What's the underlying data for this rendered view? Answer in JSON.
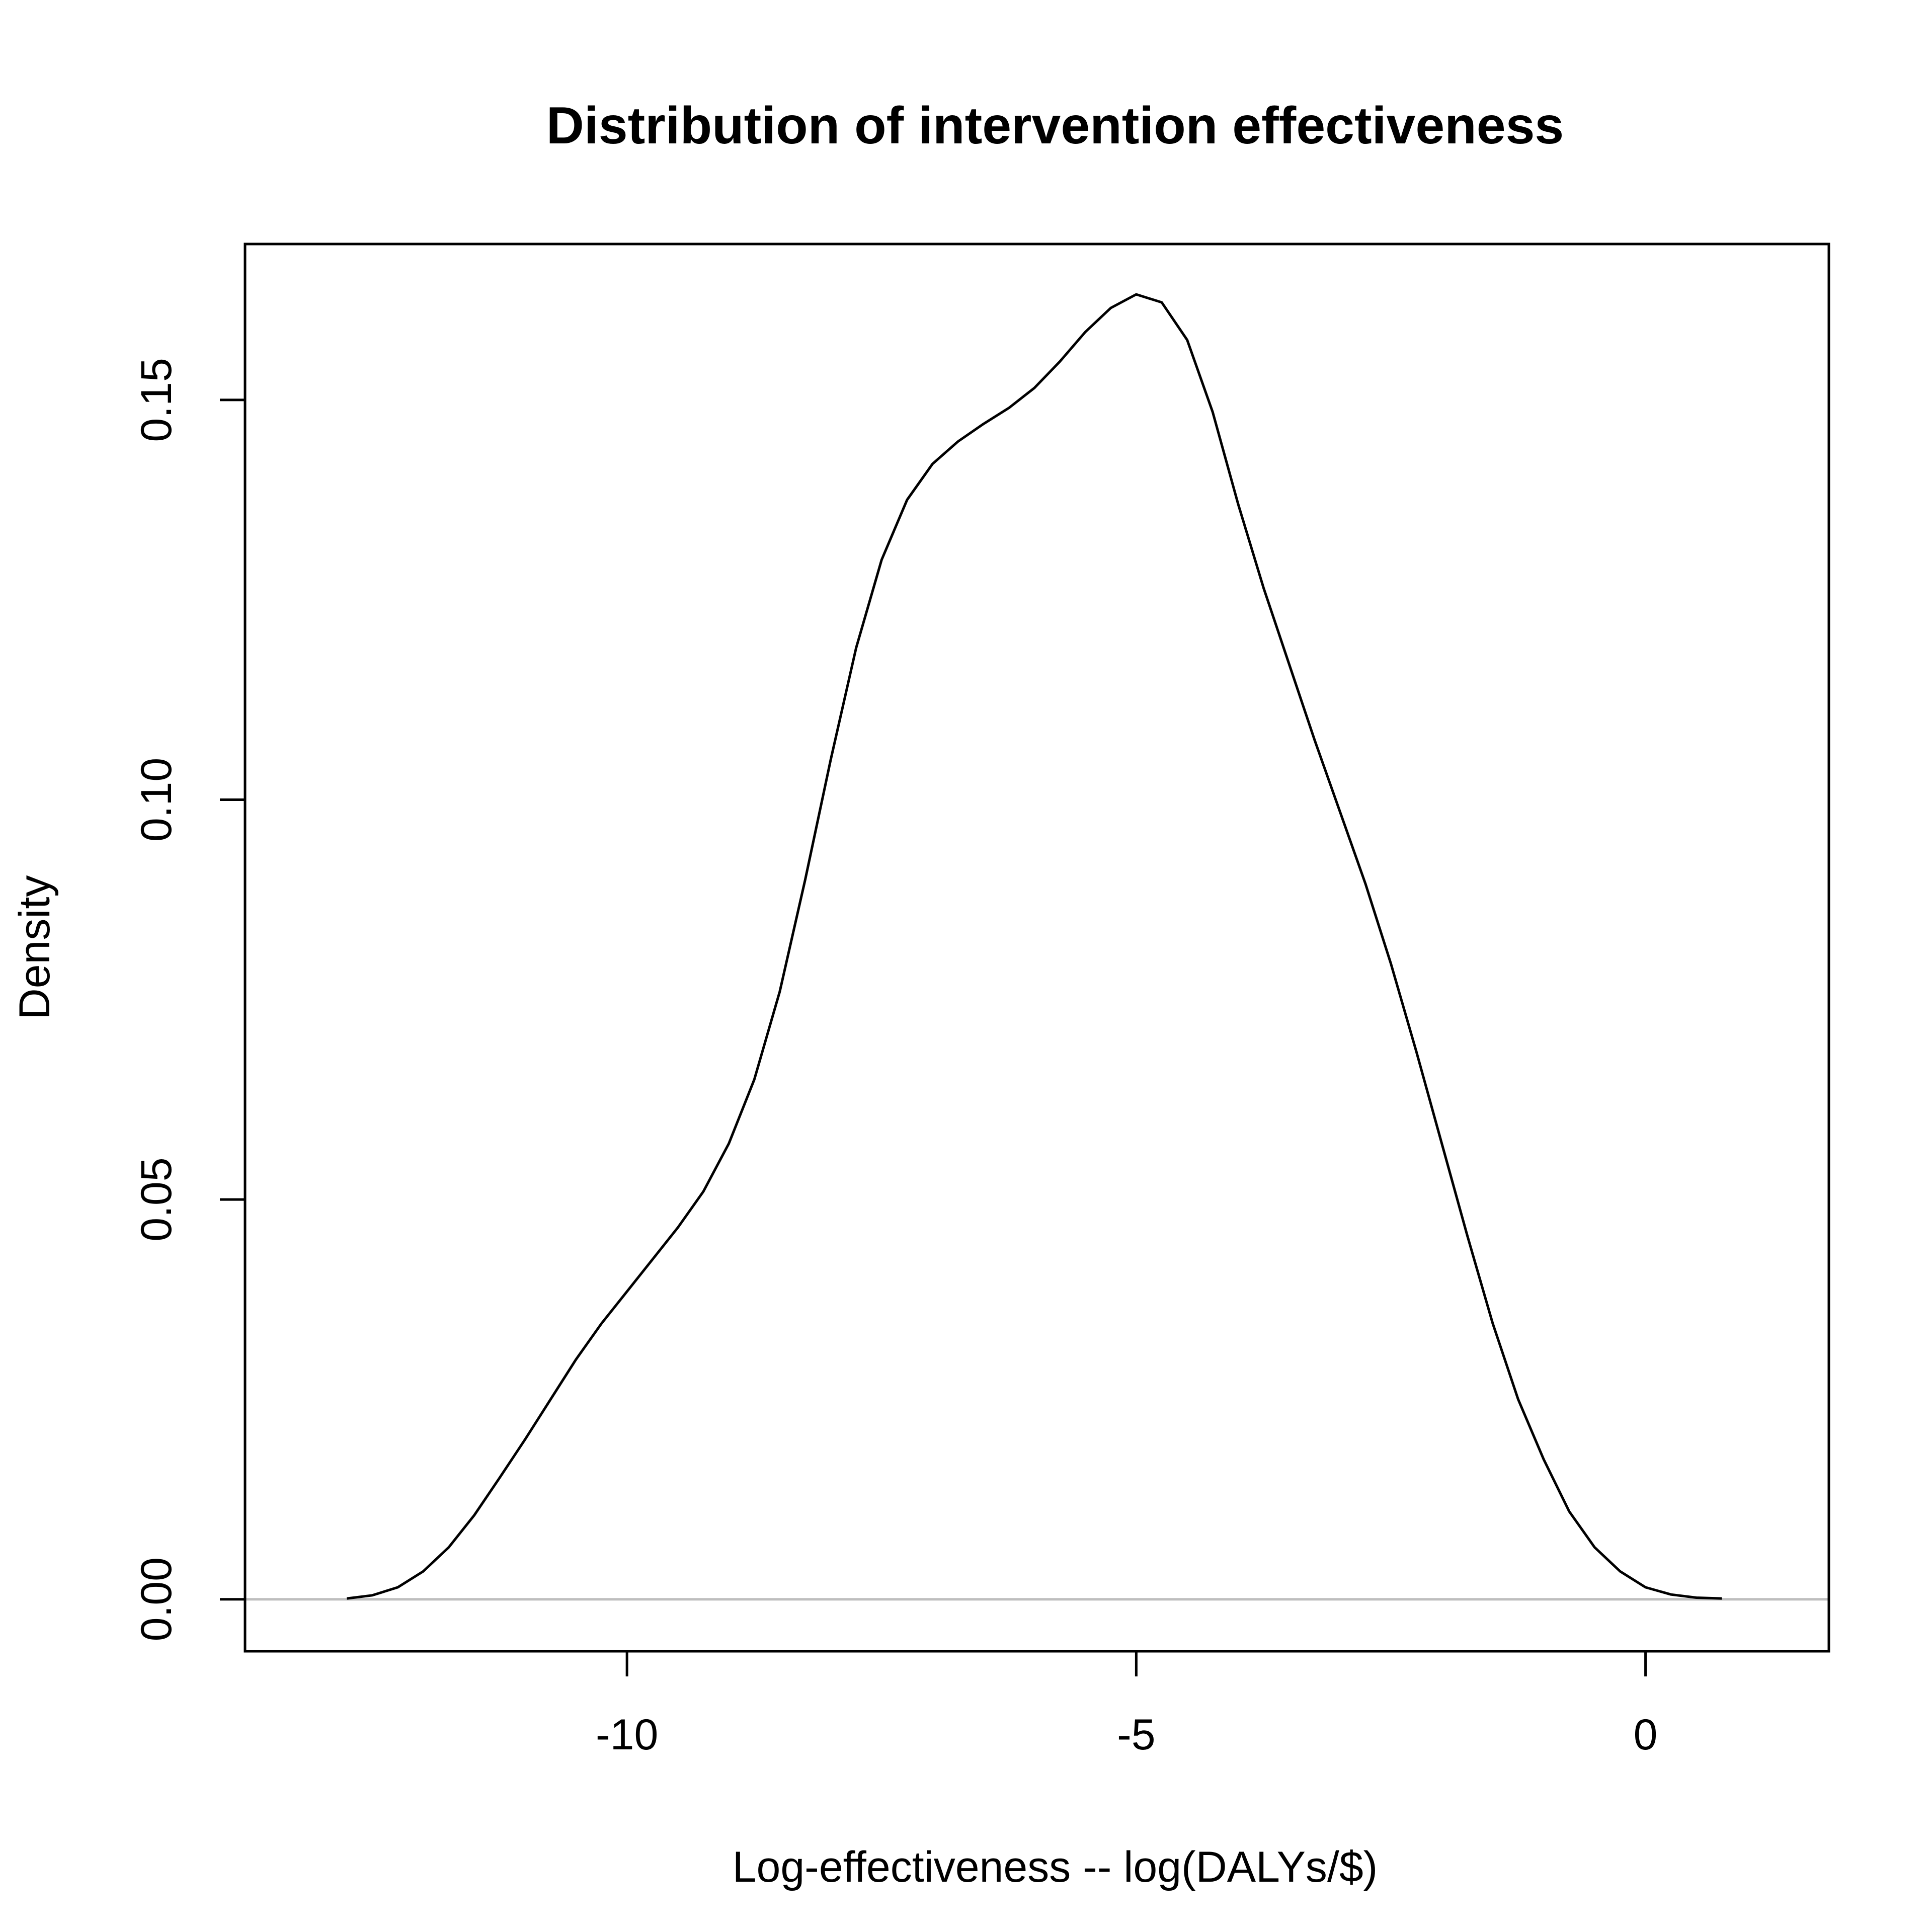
{
  "chart_data": {
    "type": "line",
    "title": "Distribution of intervention effectiveness",
    "xlabel": "Log-effectiveness -- log(DALYs/$)",
    "ylabel": "Density",
    "xlim": [
      -13.75,
      1.8
    ],
    "ylim": [
      -0.0065,
      0.1695
    ],
    "xticks": [
      -10,
      -5,
      0
    ],
    "xtick_labels": [
      "-10",
      "-5",
      "0"
    ],
    "yticks": [
      0.0,
      0.05,
      0.1,
      0.15
    ],
    "ytick_labels": [
      "0.00",
      "0.05",
      "0.10",
      "0.15"
    ],
    "grid": false,
    "baseline": {
      "y": 0.0,
      "color": "#bebebe"
    },
    "series": [
      {
        "name": "density",
        "color": "#000000",
        "x": [
          -12.75,
          -12.5,
          -12.25,
          -12.0,
          -11.75,
          -11.5,
          -11.25,
          -11.0,
          -10.75,
          -10.5,
          -10.25,
          -10.0,
          -9.75,
          -9.5,
          -9.25,
          -9.0,
          -8.75,
          -8.5,
          -8.25,
          -8.0,
          -7.75,
          -7.5,
          -7.25,
          -7.0,
          -6.75,
          -6.5,
          -6.25,
          -6.0,
          -5.75,
          -5.5,
          -5.25,
          -5.0,
          -4.75,
          -4.5,
          -4.25,
          -4.0,
          -3.75,
          -3.5,
          -3.25,
          -3.0,
          -2.75,
          -2.5,
          -2.25,
          -2.0,
          -1.75,
          -1.5,
          -1.25,
          -1.0,
          -0.75,
          -0.5,
          -0.25,
          0.0,
          0.25,
          0.5,
          0.75
        ],
        "y": [
          0.0001,
          0.0005,
          0.0015,
          0.0035,
          0.0065,
          0.0105,
          0.0152,
          0.02,
          0.025,
          0.03,
          0.0345,
          0.0385,
          0.0425,
          0.0465,
          0.051,
          0.057,
          0.065,
          0.076,
          0.09,
          0.105,
          0.119,
          0.13,
          0.1375,
          0.142,
          0.1448,
          0.147,
          0.149,
          0.1515,
          0.1548,
          0.1585,
          0.1615,
          0.1632,
          0.1622,
          0.1575,
          0.1485,
          0.137,
          0.1265,
          0.117,
          0.1075,
          0.0985,
          0.0895,
          0.0795,
          0.0685,
          0.057,
          0.0455,
          0.0345,
          0.025,
          0.0175,
          0.011,
          0.0065,
          0.0035,
          0.0015,
          0.0006,
          0.0002,
          0.0001
        ]
      }
    ]
  }
}
